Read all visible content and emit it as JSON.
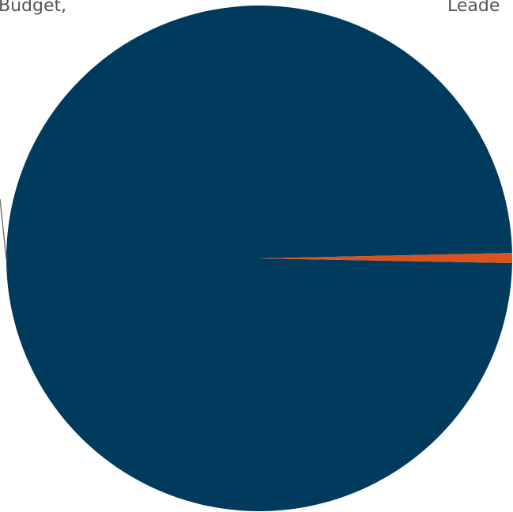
{
  "chart_data": {
    "type": "pie",
    "categories": [
      "Budget,",
      "Leade"
    ],
    "values": [
      99.36,
      0.64
    ],
    "colors": [
      "#003a5c",
      "#d9531e"
    ]
  }
}
